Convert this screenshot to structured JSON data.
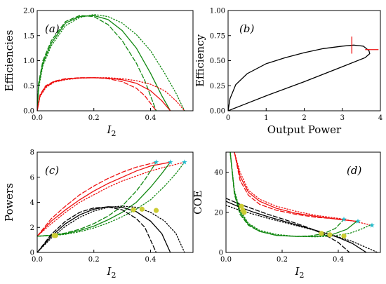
{
  "chart_data": [
    {
      "panel": "(a)",
      "type": "line",
      "ylabel": "Efficiencies",
      "xlabel_main": "I",
      "xlabel_sub": "2",
      "xlim": [
        0,
        0.55
      ],
      "ylim": [
        0,
        2.0
      ],
      "xticks": [
        "0.0",
        "0.2",
        "0.4"
      ],
      "yticks": [
        "0.0",
        "0.5",
        "1.0",
        "1.5",
        "2.0"
      ],
      "colors": {
        "green": "#118811",
        "red": "#ee1111"
      },
      "series": [
        {
          "color": "green",
          "style": "solid",
          "x": [
            0,
            0.005,
            0.02,
            0.05,
            0.1,
            0.15,
            0.2,
            0.25,
            0.3,
            0.35,
            0.4,
            0.44,
            0.47
          ],
          "y": [
            0,
            0.5,
            0.95,
            1.35,
            1.75,
            1.88,
            1.9,
            1.82,
            1.6,
            1.25,
            0.75,
            0.3,
            0
          ]
        },
        {
          "color": "green",
          "style": "dashed",
          "x": [
            0,
            0.005,
            0.02,
            0.05,
            0.1,
            0.15,
            0.2,
            0.25,
            0.3,
            0.35,
            0.38,
            0.42
          ],
          "y": [
            0,
            0.55,
            1.0,
            1.4,
            1.78,
            1.9,
            1.88,
            1.72,
            1.4,
            0.95,
            0.6,
            0
          ]
        },
        {
          "color": "green",
          "style": "dotted",
          "x": [
            0,
            0.005,
            0.02,
            0.05,
            0.1,
            0.15,
            0.2,
            0.25,
            0.3,
            0.35,
            0.4,
            0.45,
            0.49,
            0.52
          ],
          "y": [
            0,
            0.45,
            0.9,
            1.3,
            1.7,
            1.86,
            1.92,
            1.88,
            1.75,
            1.52,
            1.2,
            0.75,
            0.35,
            0
          ]
        },
        {
          "color": "red",
          "style": "solid",
          "x": [
            0,
            0.01,
            0.03,
            0.06,
            0.1,
            0.15,
            0.2,
            0.25,
            0.3,
            0.35,
            0.4,
            0.44,
            0.47
          ],
          "y": [
            0,
            0.3,
            0.48,
            0.58,
            0.63,
            0.655,
            0.66,
            0.65,
            0.62,
            0.55,
            0.4,
            0.2,
            0
          ]
        },
        {
          "color": "red",
          "style": "dashed",
          "x": [
            0,
            0.01,
            0.03,
            0.06,
            0.1,
            0.15,
            0.2,
            0.25,
            0.3,
            0.35,
            0.38,
            0.42
          ],
          "y": [
            0,
            0.32,
            0.5,
            0.59,
            0.64,
            0.66,
            0.66,
            0.64,
            0.58,
            0.45,
            0.3,
            0
          ]
        },
        {
          "color": "red",
          "style": "dotted",
          "x": [
            0,
            0.01,
            0.03,
            0.06,
            0.1,
            0.15,
            0.2,
            0.25,
            0.3,
            0.35,
            0.4,
            0.45,
            0.49,
            0.52
          ],
          "y": [
            0,
            0.28,
            0.46,
            0.57,
            0.62,
            0.65,
            0.66,
            0.66,
            0.64,
            0.6,
            0.53,
            0.4,
            0.2,
            0
          ]
        }
      ]
    },
    {
      "panel": "(b)",
      "type": "line",
      "ylabel": "Efficiency",
      "xlabel": "Output Power",
      "xlim": [
        0,
        4
      ],
      "ylim": [
        0,
        1.0
      ],
      "xticks": [
        "0",
        "1",
        "2",
        "3",
        "4"
      ],
      "yticks": [
        "0.00",
        "0.25",
        "0.50",
        "0.75",
        "1.00"
      ],
      "colors": {
        "black": "#000000",
        "red": "#ee1111"
      },
      "series": [
        {
          "color": "black",
          "style": "solid",
          "x": [
            0,
            0.05,
            0.2,
            0.5,
            1.0,
            1.5,
            2.0,
            2.5,
            3.0,
            3.3,
            3.55,
            3.7,
            3.72,
            3.6,
            3.0,
            2.0,
            1.0,
            0.5,
            0
          ],
          "y": [
            0,
            0.12,
            0.26,
            0.37,
            0.47,
            0.53,
            0.58,
            0.62,
            0.645,
            0.655,
            0.645,
            0.6,
            0.57,
            0.53,
            0.44,
            0.29,
            0.15,
            0.075,
            0
          ]
        }
      ],
      "markers": [
        {
          "type": "vline",
          "x": 3.25,
          "y0": 0.57,
          "y1": 0.74,
          "color": "red"
        },
        {
          "type": "hline",
          "y": 0.61,
          "x0": 3.6,
          "x1": 3.95,
          "color": "red"
        }
      ]
    },
    {
      "panel": "(c)",
      "type": "line",
      "ylabel": "Powers",
      "xlabel_main": "I",
      "xlabel_sub": "2",
      "xlim": [
        0,
        0.55
      ],
      "ylim": [
        0,
        8
      ],
      "xticks": [
        "0.0",
        "0.2",
        "0.4"
      ],
      "yticks": [
        "0",
        "2",
        "4",
        "6",
        "8"
      ],
      "colors": {
        "green": "#118811",
        "red": "#ee1111",
        "black": "#000000",
        "marker": "#cccc33",
        "star": "#22bbcc"
      },
      "series": [
        {
          "color": "red",
          "style": "solid",
          "x": [
            0,
            0.05,
            0.1,
            0.15,
            0.2,
            0.25,
            0.3,
            0.35,
            0.4,
            0.47
          ],
          "y": [
            1.3,
            2.5,
            3.4,
            4.2,
            4.9,
            5.5,
            6.0,
            6.5,
            6.9,
            7.2
          ]
        },
        {
          "color": "red",
          "style": "dashed",
          "x": [
            0,
            0.05,
            0.1,
            0.15,
            0.2,
            0.25,
            0.3,
            0.35,
            0.42
          ],
          "y": [
            1.3,
            2.7,
            3.7,
            4.6,
            5.3,
            5.9,
            6.4,
            6.8,
            7.2
          ]
        },
        {
          "color": "red",
          "style": "dotted",
          "x": [
            0,
            0.05,
            0.1,
            0.15,
            0.2,
            0.25,
            0.3,
            0.35,
            0.4,
            0.45,
            0.52
          ],
          "y": [
            1.3,
            2.3,
            3.2,
            4.0,
            4.6,
            5.2,
            5.7,
            6.1,
            6.5,
            6.8,
            7.2
          ]
        },
        {
          "color": "green",
          "style": "solid",
          "x": [
            0,
            0.05,
            0.1,
            0.15,
            0.2,
            0.25,
            0.3,
            0.35,
            0.4,
            0.44,
            0.47
          ],
          "y": [
            1.3,
            1.35,
            1.5,
            1.75,
            2.1,
            2.6,
            3.2,
            4.0,
            5.2,
            6.3,
            7.2
          ]
        },
        {
          "color": "green",
          "style": "dashed",
          "x": [
            0,
            0.05,
            0.1,
            0.15,
            0.2,
            0.25,
            0.3,
            0.35,
            0.38,
            0.42
          ],
          "y": [
            1.3,
            1.38,
            1.55,
            1.85,
            2.3,
            2.9,
            3.7,
            4.9,
            5.8,
            7.2
          ]
        },
        {
          "color": "green",
          "style": "dotted",
          "x": [
            0,
            0.05,
            0.1,
            0.15,
            0.2,
            0.25,
            0.3,
            0.35,
            0.4,
            0.45,
            0.49,
            0.52
          ],
          "y": [
            1.3,
            1.33,
            1.45,
            1.65,
            1.95,
            2.35,
            2.85,
            3.45,
            4.2,
            5.3,
            6.3,
            7.2
          ]
        },
        {
          "color": "black",
          "style": "solid",
          "x": [
            0,
            0.05,
            0.1,
            0.15,
            0.2,
            0.25,
            0.3,
            0.35,
            0.4,
            0.44,
            0.47
          ],
          "y": [
            0,
            1.3,
            2.3,
            3.0,
            3.45,
            3.65,
            3.6,
            3.25,
            2.5,
            1.5,
            0
          ]
        },
        {
          "color": "black",
          "style": "dashed",
          "x": [
            0,
            0.05,
            0.1,
            0.15,
            0.2,
            0.25,
            0.3,
            0.35,
            0.38,
            0.42
          ],
          "y": [
            0,
            1.45,
            2.5,
            3.2,
            3.55,
            3.62,
            3.4,
            2.7,
            2.0,
            0
          ]
        },
        {
          "color": "black",
          "style": "dotted",
          "x": [
            0,
            0.05,
            0.1,
            0.15,
            0.2,
            0.25,
            0.3,
            0.35,
            0.4,
            0.45,
            0.49,
            0.52
          ],
          "y": [
            0,
            1.15,
            2.1,
            2.8,
            3.3,
            3.6,
            3.7,
            3.6,
            3.2,
            2.5,
            1.5,
            0
          ]
        }
      ],
      "points": [
        {
          "x": 0.06,
          "y": 1.35,
          "kind": "circle"
        },
        {
          "x": 0.065,
          "y": 1.35,
          "kind": "circle"
        },
        {
          "x": 0.34,
          "y": 3.4,
          "kind": "circle"
        },
        {
          "x": 0.37,
          "y": 3.45,
          "kind": "circle"
        },
        {
          "x": 0.42,
          "y": 3.35,
          "kind": "circle"
        },
        {
          "x": 0.42,
          "y": 7.2,
          "kind": "star"
        },
        {
          "x": 0.47,
          "y": 7.2,
          "kind": "star"
        },
        {
          "x": 0.52,
          "y": 7.2,
          "kind": "star"
        }
      ]
    },
    {
      "panel": "(d)",
      "type": "line",
      "ylabel": "COE",
      "xlabel_main": "I",
      "xlabel_sub": "2",
      "xlim": [
        0,
        0.55
      ],
      "ylim": [
        0,
        50
      ],
      "xticks": [
        "0.0",
        "0.2",
        "0.4"
      ],
      "yticks": [
        "0",
        "20",
        "40"
      ],
      "colors": {
        "green": "#118811",
        "red": "#ee1111",
        "black": "#000000",
        "marker": "#cccc33",
        "star": "#22bbcc"
      },
      "series": [
        {
          "color": "red",
          "style": "solid",
          "x": [
            0.03,
            0.05,
            0.08,
            0.12,
            0.18,
            0.25,
            0.32,
            0.4,
            0.47
          ],
          "y": [
            50,
            38,
            30,
            25.5,
            22,
            19.5,
            18,
            16.5,
            15.5
          ]
        },
        {
          "color": "red",
          "style": "dashed",
          "x": [
            0.03,
            0.05,
            0.08,
            0.12,
            0.18,
            0.25,
            0.32,
            0.42
          ],
          "y": [
            50,
            36,
            28.5,
            24,
            21,
            19,
            17.5,
            16.5
          ]
        },
        {
          "color": "red",
          "style": "dotted",
          "x": [
            0.03,
            0.05,
            0.08,
            0.12,
            0.18,
            0.25,
            0.32,
            0.4,
            0.46,
            0.52
          ],
          "y": [
            50,
            40,
            31,
            26.5,
            23,
            20.5,
            18.5,
            17,
            15.5,
            13.5
          ]
        },
        {
          "color": "green",
          "style": "solid",
          "x": [
            0.015,
            0.03,
            0.05,
            0.08,
            0.12,
            0.18,
            0.25,
            0.32,
            0.38,
            0.43,
            0.47
          ],
          "y": [
            50,
            30,
            20,
            14,
            10.5,
            8.5,
            8,
            8,
            9,
            11.5,
            16
          ]
        },
        {
          "color": "green",
          "style": "dashed",
          "x": [
            0.015,
            0.03,
            0.05,
            0.08,
            0.12,
            0.18,
            0.25,
            0.3,
            0.35,
            0.39,
            0.42
          ],
          "y": [
            50,
            29,
            19,
            13.5,
            10.5,
            8.5,
            8,
            8.2,
            9.5,
            12,
            16.5
          ]
        },
        {
          "color": "green",
          "style": "dotted",
          "x": [
            0.015,
            0.03,
            0.05,
            0.08,
            0.12,
            0.18,
            0.25,
            0.32,
            0.38,
            0.44,
            0.48,
            0.52
          ],
          "y": [
            50,
            31,
            21,
            14.5,
            11,
            9,
            8,
            7.8,
            8.2,
            9.5,
            11.5,
            14
          ]
        },
        {
          "color": "black",
          "style": "solid",
          "x": [
            0,
            0.05,
            0.1,
            0.15,
            0.2,
            0.25,
            0.3,
            0.35,
            0.4,
            0.45,
            0.5
          ],
          "y": [
            25.5,
            22.5,
            20,
            17.8,
            15.8,
            13.8,
            11.8,
            9.8,
            7.5,
            4.5,
            0
          ]
        },
        {
          "color": "black",
          "style": "dashed",
          "x": [
            0,
            0.05,
            0.1,
            0.15,
            0.2,
            0.25,
            0.3,
            0.35,
            0.4,
            0.44
          ],
          "y": [
            27,
            24,
            21.5,
            19,
            16.8,
            14.5,
            12,
            9,
            5,
            0
          ]
        },
        {
          "color": "black",
          "style": "dotted",
          "x": [
            0,
            0.05,
            0.1,
            0.15,
            0.2,
            0.25,
            0.3,
            0.35,
            0.4,
            0.45,
            0.5,
            0.54
          ],
          "y": [
            23.5,
            21,
            19,
            17,
            15.2,
            13.4,
            11.6,
            9.8,
            7.8,
            5.5,
            2.5,
            0
          ]
        }
      ],
      "points": [
        {
          "x": 0.055,
          "y": 23,
          "kind": "circle"
        },
        {
          "x": 0.06,
          "y": 21,
          "kind": "circle"
        },
        {
          "x": 0.065,
          "y": 20,
          "kind": "circle"
        },
        {
          "x": 0.34,
          "y": 9.5,
          "kind": "circle"
        },
        {
          "x": 0.37,
          "y": 8.8,
          "kind": "circle"
        },
        {
          "x": 0.42,
          "y": 8.2,
          "kind": "circle"
        },
        {
          "x": 0.42,
          "y": 16.5,
          "kind": "star"
        },
        {
          "x": 0.47,
          "y": 15.5,
          "kind": "star"
        },
        {
          "x": 0.52,
          "y": 13.5,
          "kind": "star"
        }
      ]
    }
  ]
}
